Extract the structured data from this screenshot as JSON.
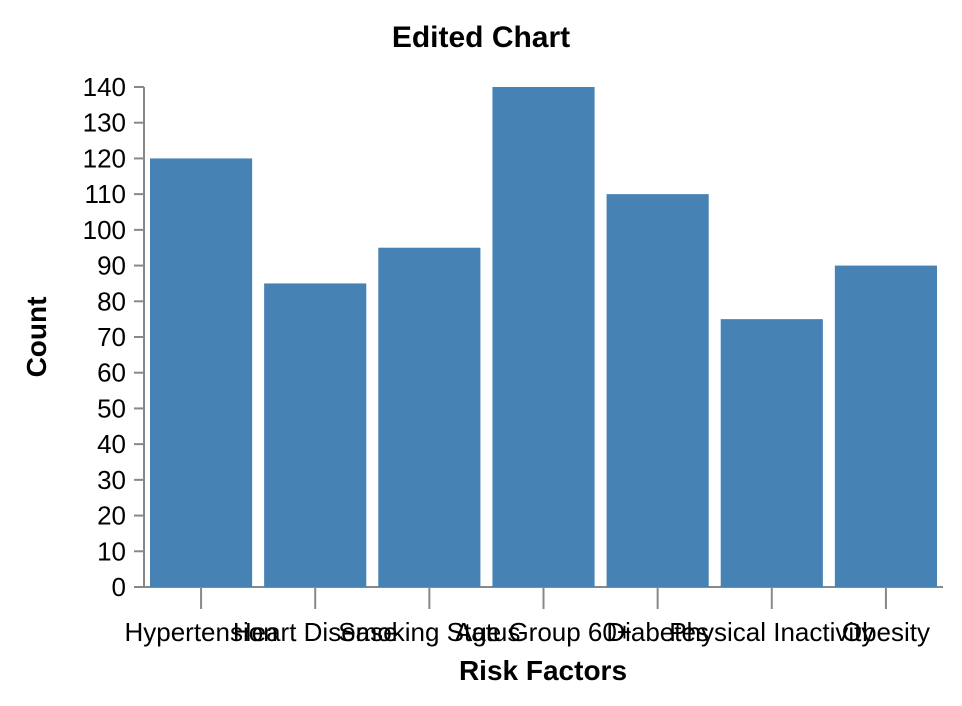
{
  "chart_data": {
    "type": "bar",
    "title": "Edited Chart",
    "xlabel": "Risk Factors",
    "ylabel": "Count",
    "categories": [
      "Hypertension",
      "Heart Disease",
      "Smoking Status",
      "Age Group 60+",
      "Diabetes",
      "Physical Inactivity",
      "Obesity"
    ],
    "values": [
      120,
      85,
      95,
      140,
      110,
      75,
      90
    ],
    "ylim": [
      0,
      140
    ],
    "yticks": [
      0,
      10,
      20,
      30,
      40,
      50,
      60,
      70,
      80,
      90,
      100,
      110,
      120,
      130,
      140
    ],
    "grid": false,
    "bar_color": "#4682b4"
  }
}
